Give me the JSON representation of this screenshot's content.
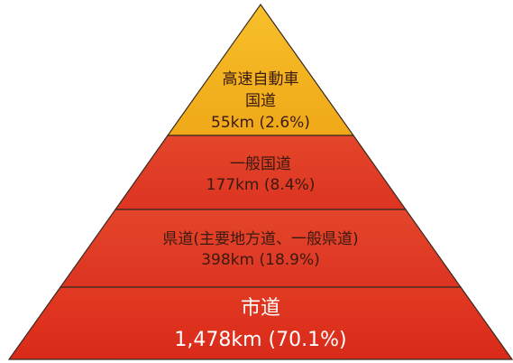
{
  "tiers": [
    {
      "name": [
        "高速自動車",
        "国道"
      ],
      "label": "55km (2.6%)"
    },
    {
      "name": [
        "一般国道"
      ],
      "label": "177km (8.4%)"
    },
    {
      "name": [
        "県道(主要地方道、一般県道)"
      ],
      "label": "398km (18.9%)"
    },
    {
      "name": [
        "市道"
      ],
      "label": "1,478km (70.1%)"
    }
  ]
}
